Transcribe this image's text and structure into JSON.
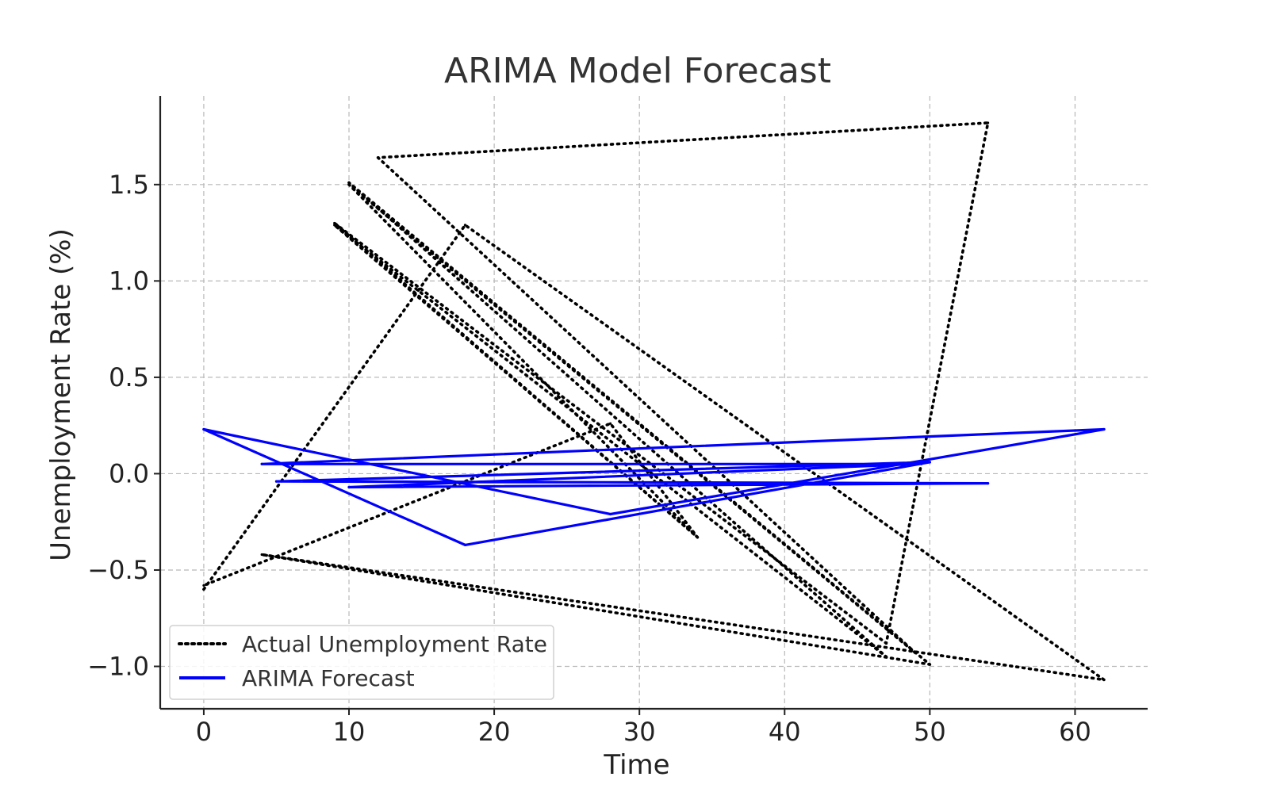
{
  "chart_data": {
    "type": "line",
    "title": "ARIMA Model Forecast",
    "xlabel": "Time",
    "ylabel": "Unemployment Rate (%)",
    "xlim": [
      -3,
      65
    ],
    "ylim": [
      -1.22,
      1.96
    ],
    "xticks": [
      0,
      10,
      20,
      30,
      40,
      50,
      60
    ],
    "xtick_labels": [
      "0",
      "10",
      "20",
      "30",
      "40",
      "50",
      "60"
    ],
    "yticks": [
      -1.0,
      -0.5,
      0.0,
      0.5,
      1.0,
      1.5
    ],
    "ytick_labels": [
      "−1.0",
      "−0.5",
      "0.0",
      "0.5",
      "1.0",
      "1.5"
    ],
    "grid": true,
    "legend_position": "lower-left",
    "series": [
      {
        "name": "Actual Unemployment Rate",
        "style": "dotted",
        "color": "#000000",
        "points": [
          [
            0,
            -0.6
          ],
          [
            18,
            1.29
          ],
          [
            62,
            -1.07
          ],
          [
            4,
            -0.42
          ],
          [
            50,
            -0.99
          ],
          [
            10,
            1.51
          ],
          [
            47,
            -0.95
          ],
          [
            9,
            1.29
          ],
          [
            34,
            -0.33
          ],
          [
            10,
            1.5
          ],
          [
            49,
            -0.93
          ],
          [
            12,
            1.64
          ],
          [
            54,
            1.82
          ],
          [
            47,
            -0.88
          ],
          [
            9,
            1.3
          ],
          [
            34,
            -0.33
          ],
          [
            28,
            0.26
          ],
          [
            0,
            -0.58
          ]
        ]
      },
      {
        "name": "ARIMA Forecast",
        "style": "solid",
        "color": "#0000ff",
        "points": [
          [
            0,
            0.23
          ],
          [
            18,
            -0.37
          ],
          [
            50,
            0.06
          ],
          [
            5,
            -0.04
          ],
          [
            54,
            -0.05
          ],
          [
            10,
            -0.07
          ],
          [
            49,
            0.05
          ],
          [
            4,
            0.05
          ],
          [
            62,
            0.23
          ],
          [
            28,
            -0.21
          ],
          [
            0,
            0.23
          ]
        ]
      }
    ]
  }
}
